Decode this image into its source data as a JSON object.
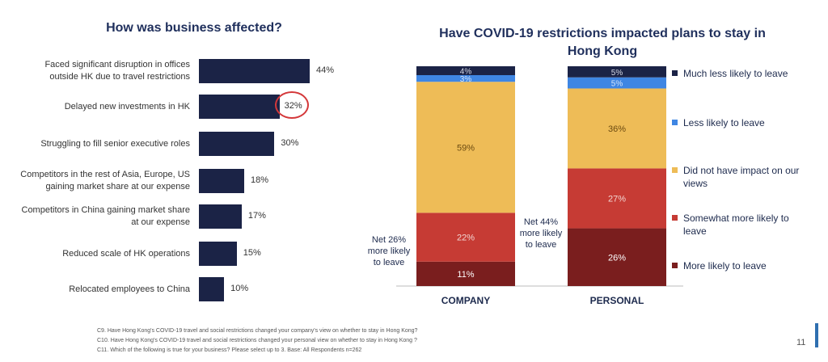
{
  "left_title": "How was business affected?",
  "right_title_line1": "Have COVID-19 restrictions impacted plans to stay in",
  "right_title_line2": "Hong Kong",
  "chart_data": [
    {
      "type": "bar",
      "orientation": "horizontal",
      "title": "How was business affected?",
      "categories": [
        [
          "Faced significant disruption in offices",
          "outside HK due to travel restrictions"
        ],
        [
          "Delayed new investments in HK"
        ],
        [
          "Struggling to fill senior executive roles"
        ],
        [
          "Competitors in the rest of Asia, Europe, US",
          "gaining market share at our expense"
        ],
        [
          "Competitors in China gaining market share",
          "at our expense"
        ],
        [
          "Reduced scale of HK operations"
        ],
        [
          "Relocated employees to China"
        ]
      ],
      "values": [
        44,
        32,
        30,
        18,
        17,
        15,
        10
      ],
      "value_labels": [
        "44%",
        "32%",
        "30%",
        "18%",
        "17%",
        "15%",
        "10%"
      ],
      "highlighted_category_index": 1,
      "highlight_color": "#d4383a",
      "bar_color": "#1b2346"
    },
    {
      "type": "bar",
      "stacked": true,
      "title": "Have COVID-19 restrictions impacted plans to stay in Hong Kong",
      "categories": [
        "COMPANY",
        "PERSONAL"
      ],
      "ylim": [
        0,
        100
      ],
      "series": [
        {
          "name": "More likely to leave",
          "color": "#7a1e1e",
          "text_color": "#ffffff",
          "values": [
            11,
            26
          ],
          "labels": [
            "11%",
            "26%"
          ]
        },
        {
          "name": "Somewhat more likely to leave",
          "color": "#c63b34",
          "text_color": "#f3d6d2",
          "values": [
            22,
            27
          ],
          "labels": [
            "22%",
            "27%"
          ]
        },
        {
          "name": "Did not have impact on our views",
          "color": "#eebc57",
          "text_color": "#6b4a10",
          "values": [
            59,
            36
          ],
          "labels": [
            "59%",
            "36%"
          ]
        },
        {
          "name": "Less likely to leave",
          "color": "#3f86e3",
          "text_color": "#d6e6fb",
          "values": [
            3,
            5
          ],
          "labels": [
            "3%",
            "5%"
          ]
        },
        {
          "name": "Much less likely to leave",
          "color": "#1b2346",
          "text_color": "#d6dbe8",
          "values": [
            4,
            5
          ],
          "labels": [
            "4%",
            "5%"
          ]
        }
      ],
      "legend_order": [
        "Much less likely to leave",
        "Less likely to leave",
        "Did not have impact on our views",
        "Somewhat more likely to leave",
        "More likely to leave"
      ],
      "legend_position": "right",
      "annotations": [
        {
          "category": "COMPANY",
          "lines": [
            "Net 26%",
            "more likely",
            "to leave"
          ]
        },
        {
          "category": "PERSONAL",
          "lines": [
            "Net 44%",
            "more likely",
            "to leave"
          ]
        }
      ]
    }
  ],
  "legend": {
    "items": [
      {
        "lines": [
          "Much less likely to leave"
        ],
        "color": "#1b2346"
      },
      {
        "lines": [
          "Less likely to leave"
        ],
        "color": "#3f86e3"
      },
      {
        "lines": [
          "Did not have impact on our",
          "views"
        ],
        "color": "#eebc57"
      },
      {
        "lines": [
          "Somewhat more likely to",
          "leave"
        ],
        "color": "#c63b34"
      },
      {
        "lines": [
          "More likely to leave"
        ],
        "color": "#7a1e1e"
      }
    ]
  },
  "footnotes": [
    "C9. Have Hong Kong's COVID-19 travel and social restrictions changed your company's view on whether to stay in Hong Kong?",
    "C10. Have Hong Kong's COVID-19 travel and social restrictions changed your personal view on whether to stay in Hong Kong ?",
    "C11. Which of the following is true for your business? Please select up to 3. Base: All Respondents n=262"
  ],
  "page_number": "11"
}
